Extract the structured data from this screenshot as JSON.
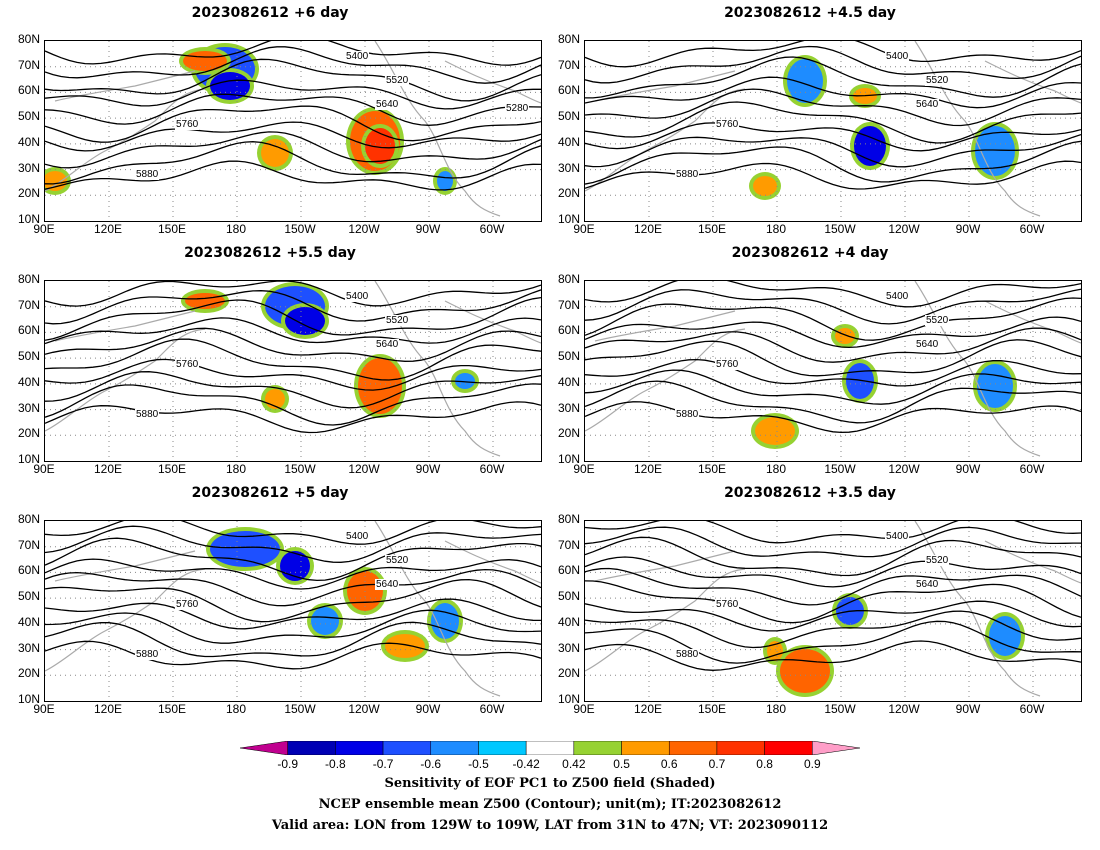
{
  "panels": [
    {
      "title": "2023082612 +6 day",
      "contour_labels": [
        "5400",
        "5520",
        "5640",
        "5760",
        "5880",
        "5280"
      ]
    },
    {
      "title": "2023082612 +4.5 day",
      "contour_labels": [
        "5400",
        "5520",
        "5640",
        "5760",
        "5880"
      ]
    },
    {
      "title": "2023082612 +5.5 day",
      "contour_labels": [
        "5400",
        "5520",
        "5640",
        "5760",
        "5880"
      ]
    },
    {
      "title": "2023082612 +4 day",
      "contour_labels": [
        "5400",
        "5520",
        "5640",
        "5760",
        "5880"
      ]
    },
    {
      "title": "2023082612 +5 day",
      "contour_labels": [
        "5400",
        "5520",
        "5640",
        "5760",
        "5880"
      ]
    },
    {
      "title": "2023082612 +3.5 day",
      "contour_labels": [
        "5400",
        "5520",
        "5640",
        "5760",
        "5880"
      ]
    }
  ],
  "axes": {
    "lat_ticks": [
      "80N",
      "70N",
      "60N",
      "50N",
      "40N",
      "30N",
      "20N",
      "10N"
    ],
    "lon_ticks": [
      "90E",
      "120E",
      "150E",
      "180",
      "150W",
      "120W",
      "90W",
      "60W"
    ]
  },
  "colorbar": {
    "ticks": [
      "-0.9",
      "-0.8",
      "-0.7",
      "-0.6",
      "-0.5",
      "-0.42",
      "0.42",
      "0.5",
      "0.6",
      "0.7",
      "0.8",
      "0.9"
    ],
    "colors": [
      "#c0008f",
      "#0000b4",
      "#0000e6",
      "#1e50ff",
      "#1e8cff",
      "#00c8ff",
      "#ffffff",
      "#96d232",
      "#ff9b00",
      "#ff6400",
      "#ff3200",
      "#ff0000",
      "#ff9ec8"
    ]
  },
  "footer": {
    "line1": "Sensitivity of EOF PC1 to Z500 field (Shaded)",
    "line2": "NCEP ensemble mean Z500 (Contour); unit(m); IT:2023082612",
    "line3": "Valid area: LON from 129W to 109W, LAT from 31N to 47N; VT: 2023090112"
  }
}
